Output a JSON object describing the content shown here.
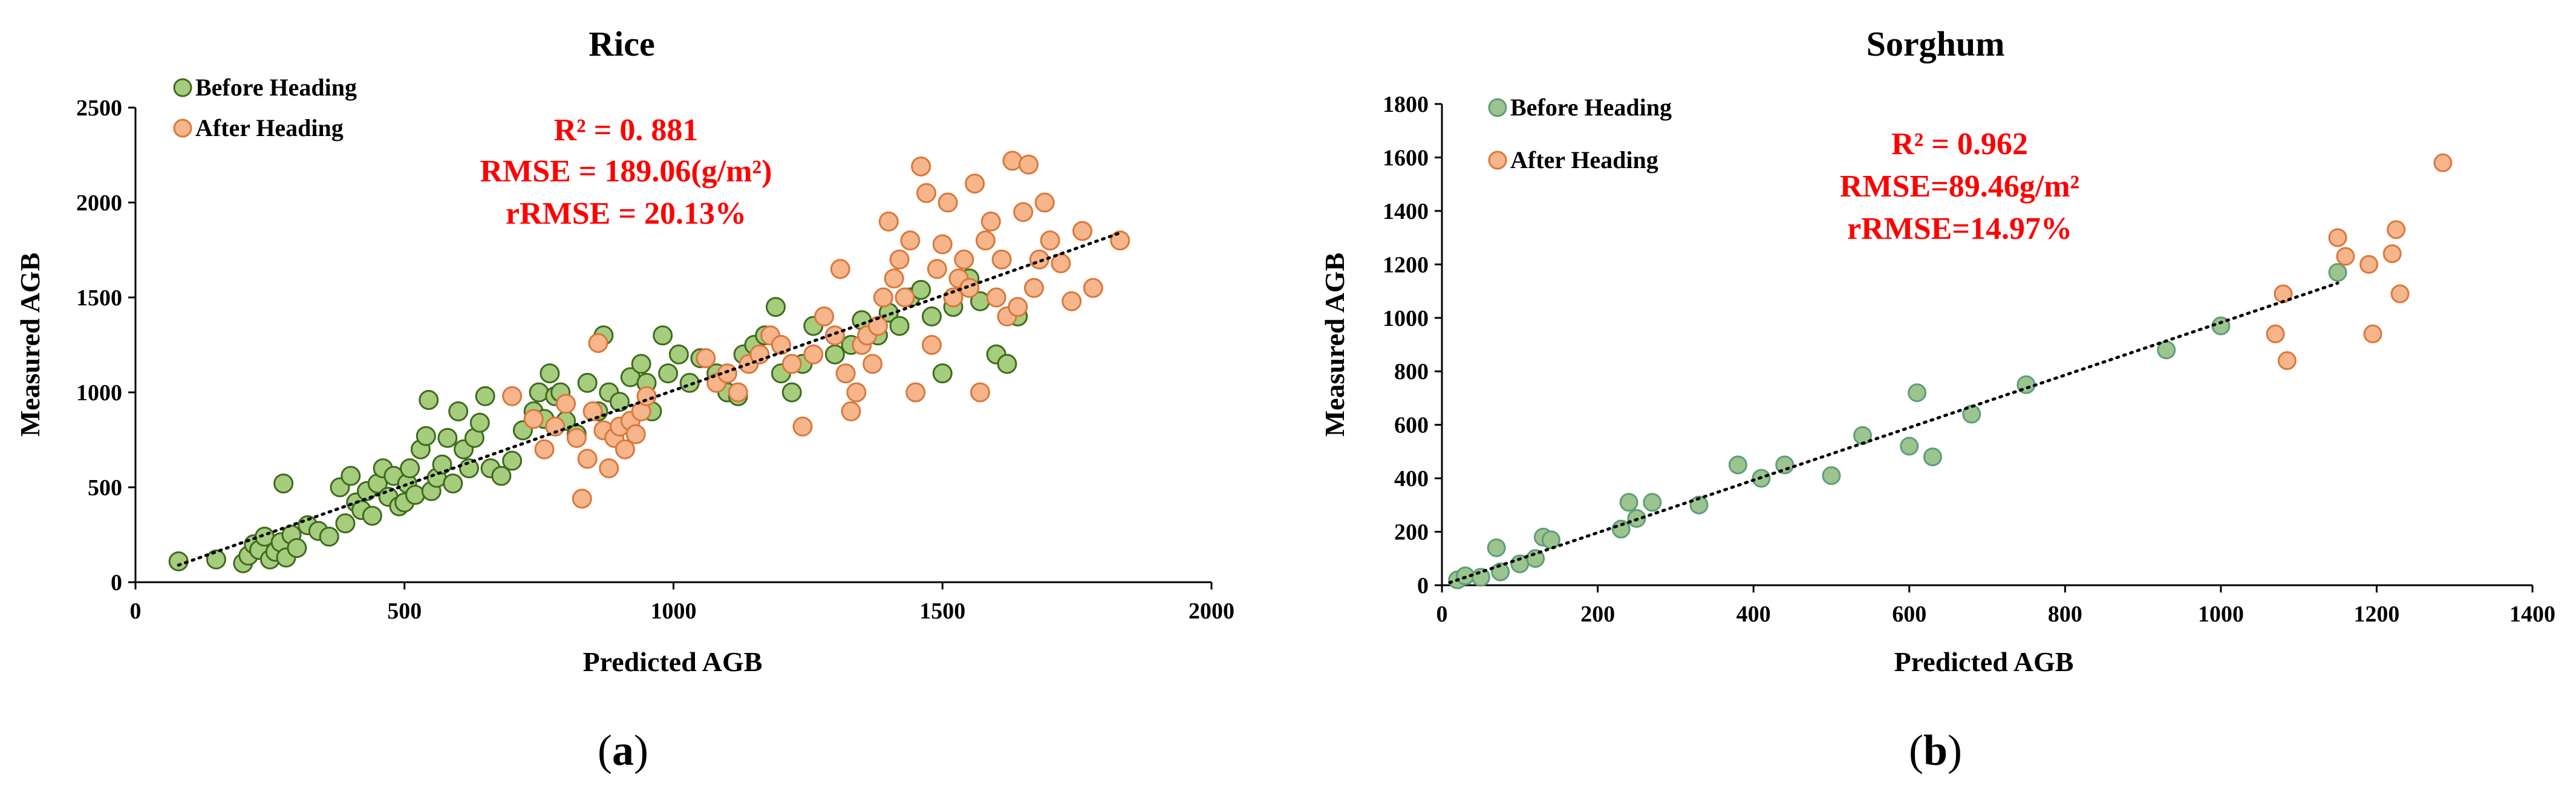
{
  "chart_data": [
    {
      "type": "scatter",
      "panel_label": "(a)",
      "panel_letter": "a",
      "title": "Rice",
      "xlabel": "Predicted AGB",
      "ylabel": "Measured AGB",
      "xlim": [
        0,
        2000
      ],
      "ylim": [
        0,
        2500
      ],
      "xticks": [
        0,
        500,
        1000,
        1500,
        2000
      ],
      "yticks": [
        0,
        500,
        1000,
        1500,
        2000,
        2500
      ],
      "legend": [
        "Before Heading",
        "After Heading"
      ],
      "stats": [
        "R² = 0. 881",
        "RMSE = 189.06(g/m²)",
        "rRMSE = 20.13%"
      ],
      "trendline": [
        [
          80,
          90
        ],
        [
          1830,
          1840
        ]
      ],
      "colors": {
        "before_fill": "#a6cd7e",
        "before_edge": "#3f6b1d",
        "after_fill": "#f6b58a",
        "after_edge": "#d9783b",
        "stat": "#ff0000"
      },
      "series": [
        {
          "name": "Before Heading",
          "points": [
            [
              80,
              110
            ],
            [
              150,
              120
            ],
            [
              200,
              100
            ],
            [
              210,
              140
            ],
            [
              220,
              200
            ],
            [
              230,
              170
            ],
            [
              240,
              240
            ],
            [
              250,
              120
            ],
            [
              260,
              160
            ],
            [
              270,
              210
            ],
            [
              280,
              130
            ],
            [
              275,
              520
            ],
            [
              290,
              250
            ],
            [
              300,
              180
            ],
            [
              320,
              300
            ],
            [
              340,
              270
            ],
            [
              360,
              240
            ],
            [
              380,
              500
            ],
            [
              390,
              310
            ],
            [
              400,
              560
            ],
            [
              410,
              420
            ],
            [
              420,
              380
            ],
            [
              430,
              480
            ],
            [
              440,
              350
            ],
            [
              450,
              520
            ],
            [
              460,
              600
            ],
            [
              470,
              450
            ],
            [
              480,
              560
            ],
            [
              490,
              400
            ],
            [
              500,
              420
            ],
            [
              505,
              520
            ],
            [
              510,
              600
            ],
            [
              520,
              460
            ],
            [
              530,
              700
            ],
            [
              540,
              770
            ],
            [
              545,
              960
            ],
            [
              550,
              480
            ],
            [
              560,
              550
            ],
            [
              570,
              620
            ],
            [
              580,
              760
            ],
            [
              590,
              520
            ],
            [
              600,
              900
            ],
            [
              610,
              700
            ],
            [
              620,
              600
            ],
            [
              630,
              760
            ],
            [
              640,
              840
            ],
            [
              650,
              980
            ],
            [
              660,
              600
            ],
            [
              680,
              560
            ],
            [
              700,
              640
            ],
            [
              720,
              800
            ],
            [
              740,
              900
            ],
            [
              750,
              1000
            ],
            [
              760,
              860
            ],
            [
              770,
              1100
            ],
            [
              780,
              980
            ],
            [
              790,
              1000
            ],
            [
              800,
              850
            ],
            [
              820,
              780
            ],
            [
              840,
              1050
            ],
            [
              860,
              900
            ],
            [
              870,
              1300
            ],
            [
              880,
              1000
            ],
            [
              900,
              950
            ],
            [
              920,
              1080
            ],
            [
              940,
              1150
            ],
            [
              950,
              1050
            ],
            [
              960,
              900
            ],
            [
              980,
              1300
            ],
            [
              990,
              1100
            ],
            [
              1010,
              1200
            ],
            [
              1030,
              1050
            ],
            [
              1050,
              1180
            ],
            [
              1080,
              1100
            ],
            [
              1100,
              1000
            ],
            [
              1120,
              980
            ],
            [
              1130,
              1200
            ],
            [
              1150,
              1250
            ],
            [
              1170,
              1300
            ],
            [
              1190,
              1450
            ],
            [
              1200,
              1100
            ],
            [
              1220,
              1000
            ],
            [
              1240,
              1150
            ],
            [
              1260,
              1350
            ],
            [
              1300,
              1200
            ],
            [
              1330,
              1250
            ],
            [
              1350,
              1380
            ],
            [
              1380,
              1300
            ],
            [
              1400,
              1420
            ],
            [
              1420,
              1350
            ],
            [
              1440,
              1500
            ],
            [
              1460,
              1540
            ],
            [
              1480,
              1400
            ],
            [
              1500,
              1100
            ],
            [
              1520,
              1450
            ],
            [
              1550,
              1600
            ],
            [
              1570,
              1480
            ],
            [
              1600,
              1200
            ],
            [
              1620,
              1150
            ],
            [
              1640,
              1400
            ]
          ]
        },
        {
          "name": "After Heading",
          "points": [
            [
              700,
              980
            ],
            [
              740,
              860
            ],
            [
              760,
              700
            ],
            [
              780,
              820
            ],
            [
              800,
              940
            ],
            [
              820,
              760
            ],
            [
              830,
              440
            ],
            [
              840,
              650
            ],
            [
              850,
              900
            ],
            [
              860,
              1260
            ],
            [
              870,
              800
            ],
            [
              880,
              600
            ],
            [
              890,
              760
            ],
            [
              900,
              820
            ],
            [
              910,
              700
            ],
            [
              920,
              850
            ],
            [
              930,
              780
            ],
            [
              940,
              900
            ],
            [
              950,
              980
            ],
            [
              1060,
              1180
            ],
            [
              1080,
              1050
            ],
            [
              1100,
              1100
            ],
            [
              1120,
              1000
            ],
            [
              1140,
              1150
            ],
            [
              1160,
              1200
            ],
            [
              1180,
              1300
            ],
            [
              1200,
              1250
            ],
            [
              1220,
              1150
            ],
            [
              1240,
              820
            ],
            [
              1260,
              1200
            ],
            [
              1280,
              1400
            ],
            [
              1300,
              1300
            ],
            [
              1310,
              1650
            ],
            [
              1320,
              1100
            ],
            [
              1330,
              900
            ],
            [
              1340,
              1000
            ],
            [
              1350,
              1250
            ],
            [
              1360,
              1300
            ],
            [
              1370,
              1150
            ],
            [
              1380,
              1350
            ],
            [
              1390,
              1500
            ],
            [
              1400,
              1900
            ],
            [
              1410,
              1600
            ],
            [
              1420,
              1700
            ],
            [
              1430,
              1500
            ],
            [
              1440,
              1800
            ],
            [
              1450,
              1000
            ],
            [
              1460,
              2190
            ],
            [
              1470,
              2050
            ],
            [
              1480,
              1250
            ],
            [
              1490,
              1650
            ],
            [
              1500,
              1780
            ],
            [
              1510,
              2000
            ],
            [
              1520,
              1500
            ],
            [
              1530,
              1600
            ],
            [
              1540,
              1700
            ],
            [
              1550,
              1550
            ],
            [
              1560,
              2100
            ],
            [
              1570,
              1000
            ],
            [
              1580,
              1800
            ],
            [
              1590,
              1900
            ],
            [
              1600,
              1500
            ],
            [
              1610,
              1700
            ],
            [
              1620,
              1400
            ],
            [
              1630,
              2220
            ],
            [
              1640,
              1450
            ],
            [
              1650,
              1950
            ],
            [
              1660,
              2200
            ],
            [
              1670,
              1550
            ],
            [
              1680,
              1700
            ],
            [
              1690,
              2000
            ],
            [
              1700,
              1800
            ],
            [
              1720,
              1680
            ],
            [
              1740,
              1480
            ],
            [
              1760,
              1850
            ],
            [
              1780,
              1550
            ],
            [
              1830,
              1800
            ]
          ]
        }
      ]
    },
    {
      "type": "scatter",
      "panel_label": "(b)",
      "panel_letter": "b",
      "title": "Sorghum",
      "xlabel": "Predicted AGB",
      "ylabel": "Measured AGB",
      "xlim": [
        0,
        1400
      ],
      "ylim": [
        0,
        1800
      ],
      "xticks": [
        0,
        200,
        400,
        600,
        800,
        1000,
        1200,
        1400
      ],
      "yticks": [
        0,
        200,
        400,
        600,
        800,
        1000,
        1200,
        1400,
        1600,
        1800
      ],
      "legend": [
        "Before Heading",
        "After Heading"
      ],
      "stats": [
        "R² = 0.962",
        "RMSE=89.46g/m²",
        "rRMSE=14.97%"
      ],
      "trendline": [
        [
          10,
          10
        ],
        [
          1150,
          1130
        ]
      ],
      "colors": {
        "before_fill": "#9cc48e",
        "before_edge": "#5e9e78",
        "after_fill": "#f6b58a",
        "after_edge": "#d9783b",
        "stat": "#ff0000"
      },
      "series": [
        {
          "name": "Before Heading",
          "points": [
            [
              20,
              20
            ],
            [
              30,
              35
            ],
            [
              50,
              30
            ],
            [
              70,
              140
            ],
            [
              75,
              50
            ],
            [
              100,
              80
            ],
            [
              120,
              100
            ],
            [
              130,
              180
            ],
            [
              140,
              170
            ],
            [
              230,
              210
            ],
            [
              240,
              310
            ],
            [
              250,
              250
            ],
            [
              270,
              310
            ],
            [
              330,
              300
            ],
            [
              380,
              450
            ],
            [
              410,
              400
            ],
            [
              440,
              450
            ],
            [
              500,
              410
            ],
            [
              540,
              560
            ],
            [
              600,
              520
            ],
            [
              610,
              720
            ],
            [
              630,
              480
            ],
            [
              680,
              640
            ],
            [
              750,
              750
            ],
            [
              930,
              880
            ],
            [
              1000,
              970
            ],
            [
              1150,
              1170
            ]
          ]
        },
        {
          "name": "After Heading",
          "points": [
            [
              1070,
              940
            ],
            [
              1080,
              1090
            ],
            [
              1085,
              840
            ],
            [
              1150,
              1300
            ],
            [
              1160,
              1230
            ],
            [
              1190,
              1200
            ],
            [
              1195,
              940
            ],
            [
              1220,
              1240
            ],
            [
              1225,
              1330
            ],
            [
              1230,
              1090
            ],
            [
              1285,
              1580
            ]
          ]
        }
      ]
    }
  ]
}
